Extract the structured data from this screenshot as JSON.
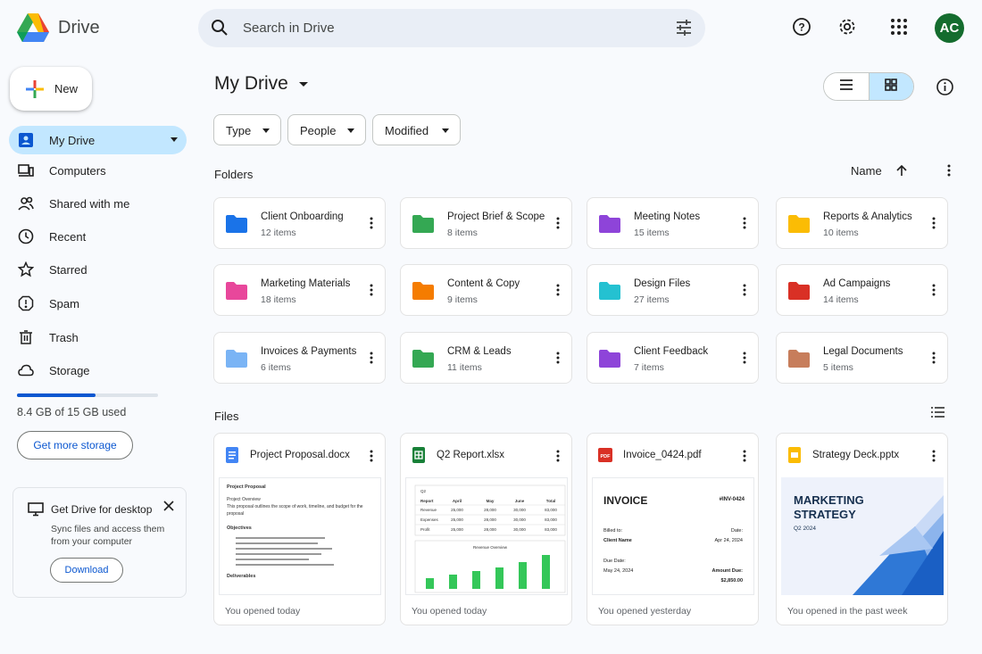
{
  "header": {
    "brand": "Drive",
    "search_placeholder": "Search in Drive",
    "avatar_initials": "AC",
    "avatar_color": "#146c2e"
  },
  "sidebar": {
    "new_label": "New",
    "items": [
      {
        "label": "My Drive",
        "icon": "my-drive-icon",
        "active": true
      },
      {
        "label": "Computers",
        "icon": "computer-icon"
      },
      {
        "label": "Shared with me",
        "icon": "shared-icon"
      },
      {
        "label": "Recent",
        "icon": "clock-icon"
      },
      {
        "label": "Starred",
        "icon": "star-icon"
      },
      {
        "label": "Spam",
        "icon": "spam-icon"
      },
      {
        "label": "Trash",
        "icon": "trash-icon"
      },
      {
        "label": "Storage",
        "icon": "cloud-icon"
      }
    ],
    "storage_text": "8.4 GB of 15 GB used",
    "storage_fraction": 0.56,
    "get_storage_label": "Get more storage",
    "promo": {
      "title": "Get Drive for desktop",
      "description": "Sync files and access them from your computer",
      "button": "Download"
    }
  },
  "main": {
    "title": "My Drive",
    "filters": [
      "Type",
      "People",
      "Modified"
    ],
    "folders_heading": "Folders",
    "files_heading": "Files",
    "sort_label": "Name",
    "folders": [
      {
        "name": "Client Onboarding",
        "count": "12 items",
        "color": "#1a73e8"
      },
      {
        "name": "Project Brief & Scope",
        "count": "8 items",
        "color": "#34a853"
      },
      {
        "name": "Meeting Notes",
        "count": "15 items",
        "color": "#8e44d9"
      },
      {
        "name": "Reports & Analytics",
        "count": "10 items",
        "color": "#fbbc04"
      },
      {
        "name": "Marketing Materials",
        "count": "18 items",
        "color": "#e8479b"
      },
      {
        "name": "Content & Copy",
        "count": "9 items",
        "color": "#f57c00"
      },
      {
        "name": "Design Files",
        "count": "27 items",
        "color": "#24c1d1"
      },
      {
        "name": "Ad Campaigns",
        "count": "14 items",
        "color": "#d93025"
      },
      {
        "name": "Invoices & Payments",
        "count": "6 items",
        "color": "#7ab4f5"
      },
      {
        "name": "CRM & Leads",
        "count": "11 items",
        "color": "#34a853"
      },
      {
        "name": "Client Feedback",
        "count": "7 items",
        "color": "#8e44d9"
      },
      {
        "name": "Legal Documents",
        "count": "5 items",
        "color": "#c77d5b"
      }
    ],
    "files": [
      {
        "name": "Project Proposal.docx",
        "type": "doc",
        "opened": "You opened today",
        "color": "#4285f4"
      },
      {
        "name": "Q2 Report.xlsx",
        "type": "sheet",
        "opened": "You opened today",
        "color": "#188038"
      },
      {
        "name": "Invoice_0424.pdf",
        "type": "pdf",
        "opened": "You opened yesterday",
        "color": "#d93025"
      },
      {
        "name": "Strategy Deck.pptx",
        "type": "slides",
        "opened": "You opened in the past week",
        "color": "#fbbc04"
      }
    ],
    "previews": {
      "doc": {
        "title": "Project Proposal",
        "overview": "Project Overview",
        "body": "This proposal outlines the scope of work, timeline, and budget for the proposal",
        "objectives": "Objectives",
        "deliverables": "Deliverables"
      },
      "sheet": {
        "corner": "Q2",
        "headers": [
          "Report",
          "April",
          "May",
          "June",
          "Total"
        ],
        "rows": [
          [
            "Revenue",
            "25,000",
            "28,000",
            "30,000",
            "83,000"
          ],
          [
            "Expenses",
            "25,000",
            "28,000",
            "30,000",
            "83,000"
          ],
          [
            "Profit",
            "25,000",
            "28,000",
            "30,000",
            "83,000"
          ]
        ],
        "chart_title": "Revenue Overview",
        "bars": [
          0.3,
          0.4,
          0.5,
          0.6,
          0.75,
          0.95
        ]
      },
      "invoice": {
        "title": "INVOICE",
        "number": "#INV-0424",
        "billed_to": "Billed to:",
        "client": "Client Name",
        "date_label": "Date:",
        "date": "Apr 24, 2024",
        "due_label": "Due Date:",
        "due": "May 24, 2024",
        "amount_label": "Amount Due:",
        "amount": "$2,850.00"
      },
      "slides": {
        "title_line1": "MARKETING",
        "title_line2": "STRATEGY",
        "subtitle": "Q2 2024"
      }
    }
  }
}
